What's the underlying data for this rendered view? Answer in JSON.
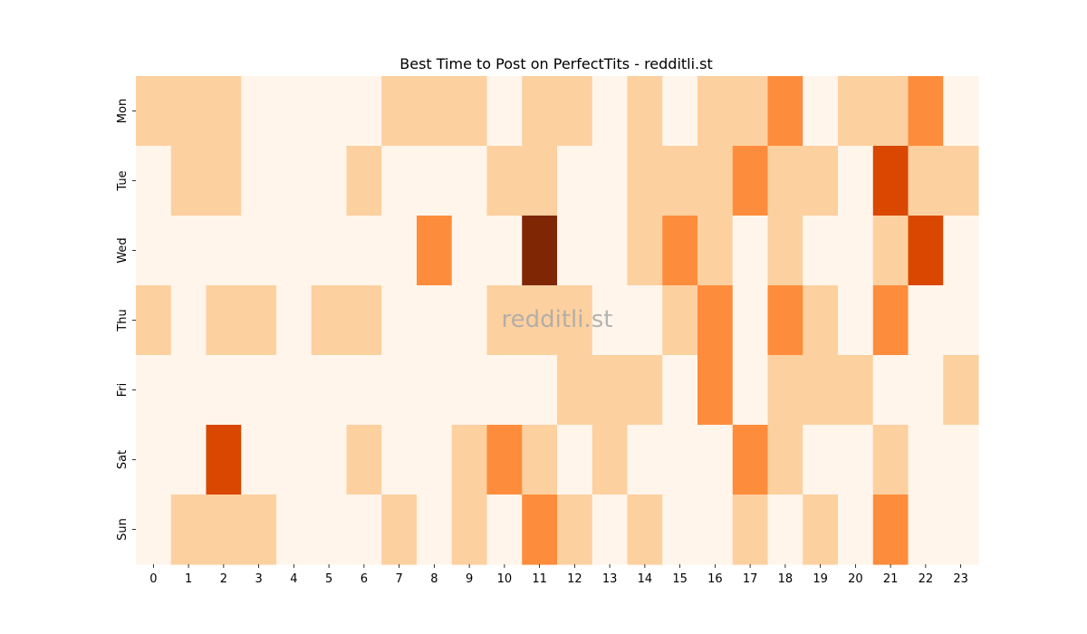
{
  "chart_data": {
    "type": "heatmap",
    "title": "Best Time to Post on PerfectTits - redditli.st",
    "watermark": "redditli.st",
    "x_categories": [
      "0",
      "1",
      "2",
      "3",
      "4",
      "5",
      "6",
      "7",
      "8",
      "9",
      "10",
      "11",
      "12",
      "13",
      "14",
      "15",
      "16",
      "17",
      "18",
      "19",
      "20",
      "21",
      "22",
      "23"
    ],
    "y_categories": [
      "Mon",
      "Tue",
      "Wed",
      "Thu",
      "Fri",
      "Sat",
      "Sun"
    ],
    "values": [
      [
        1,
        1,
        1,
        0,
        0,
        0,
        0,
        1,
        1,
        1,
        0,
        1,
        1,
        0,
        1,
        0,
        1,
        1,
        2,
        0,
        1,
        1,
        2,
        0
      ],
      [
        0,
        1,
        1,
        0,
        0,
        0,
        1,
        0,
        0,
        0,
        1,
        1,
        0,
        0,
        1,
        1,
        1,
        2,
        1,
        1,
        0,
        3,
        1,
        1
      ],
      [
        0,
        0,
        0,
        0,
        0,
        0,
        0,
        0,
        2,
        0,
        0,
        4,
        0,
        0,
        1,
        2,
        1,
        0,
        1,
        0,
        0,
        1,
        3,
        0
      ],
      [
        1,
        0,
        1,
        1,
        0,
        1,
        1,
        0,
        0,
        0,
        1,
        1,
        1,
        0,
        0,
        1,
        2,
        0,
        2,
        1,
        0,
        2,
        0,
        0
      ],
      [
        0,
        0,
        0,
        0,
        0,
        0,
        0,
        0,
        0,
        0,
        0,
        0,
        1,
        1,
        1,
        0,
        2,
        0,
        1,
        1,
        1,
        0,
        0,
        1
      ],
      [
        0,
        0,
        3,
        0,
        0,
        0,
        1,
        0,
        0,
        1,
        2,
        1,
        0,
        1,
        0,
        0,
        0,
        2,
        1,
        0,
        0,
        1,
        0,
        0
      ],
      [
        0,
        1,
        1,
        1,
        0,
        0,
        0,
        1,
        0,
        1,
        0,
        2,
        1,
        0,
        1,
        0,
        0,
        1,
        0,
        1,
        0,
        2,
        0,
        0
      ]
    ],
    "value_range": [
      0,
      4
    ],
    "colors": [
      "#fff5eb",
      "#fdd09f",
      "#fd8d3c",
      "#d94701",
      "#7f2704"
    ],
    "colorbar": false,
    "grid": false
  }
}
